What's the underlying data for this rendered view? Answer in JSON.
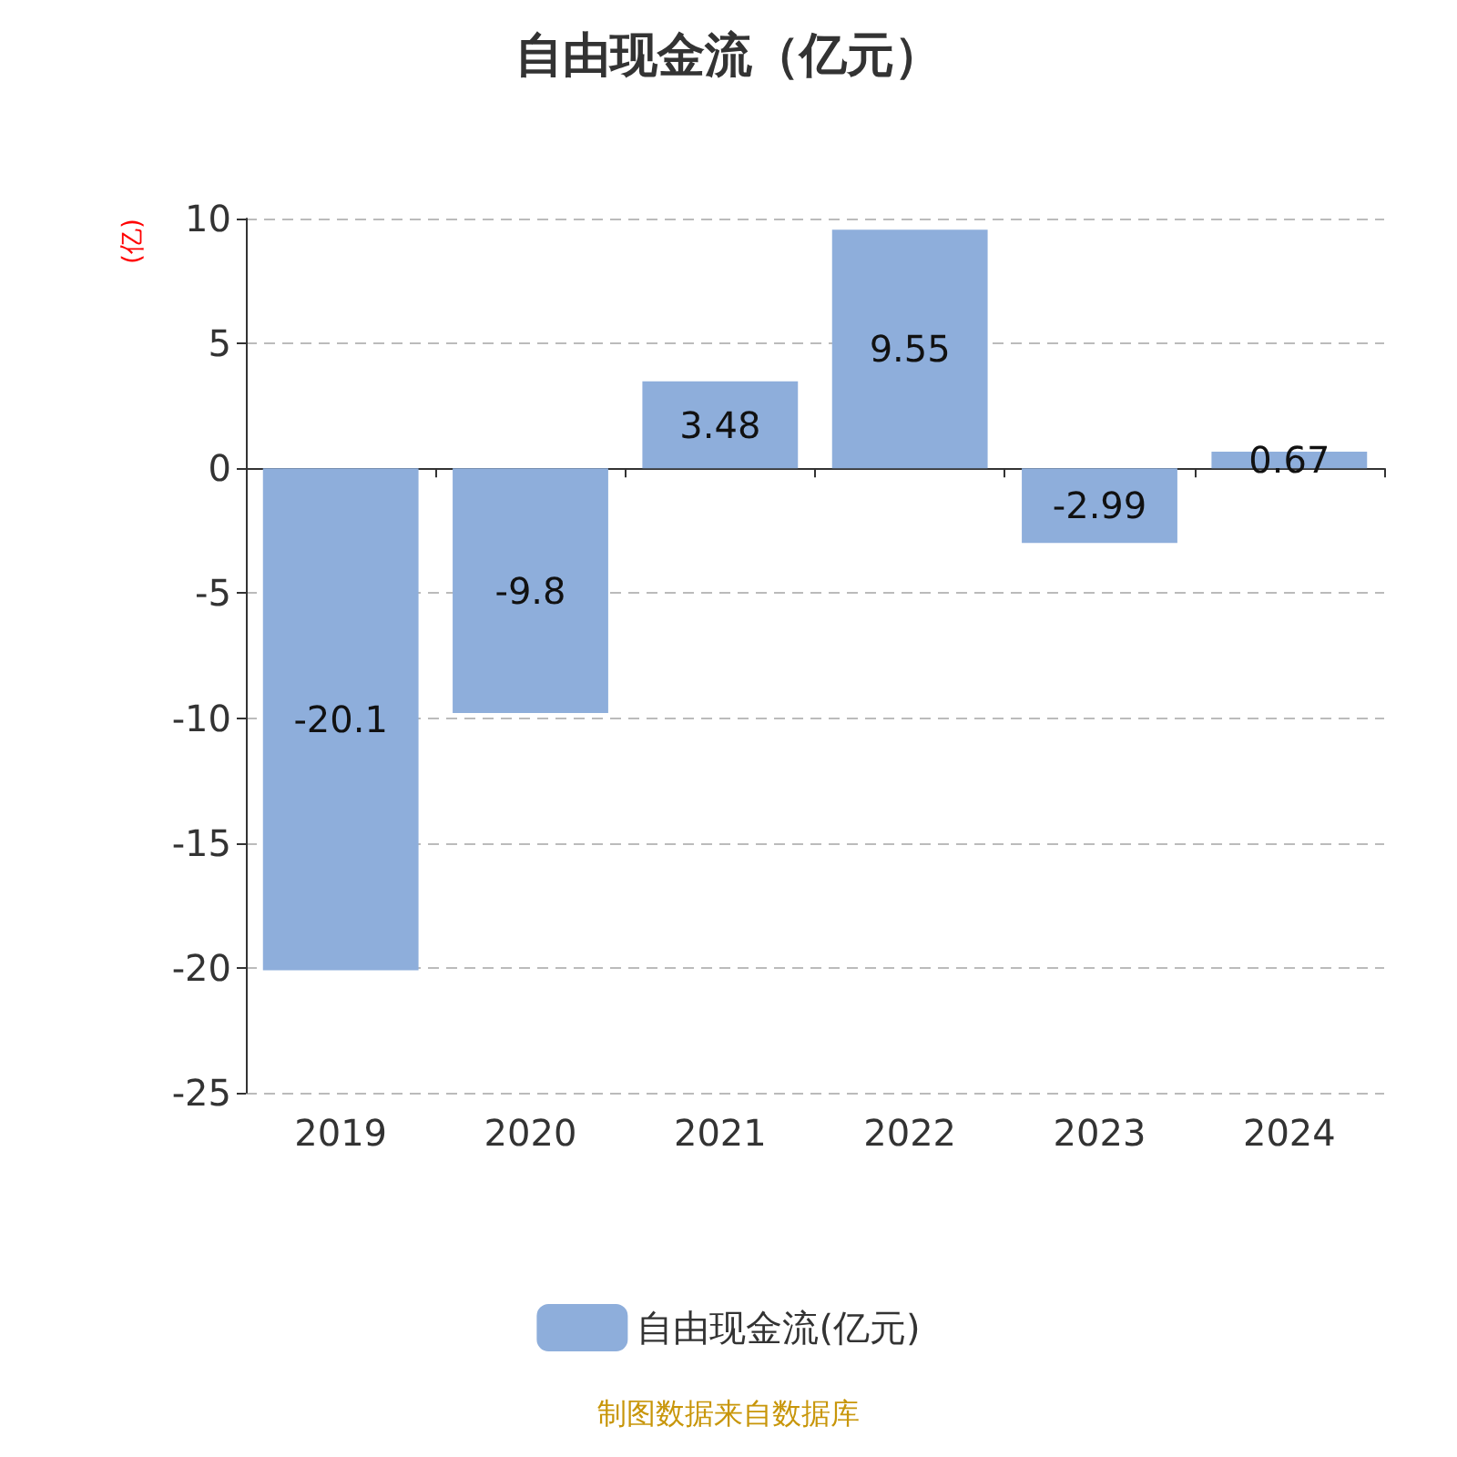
{
  "chart_data": {
    "type": "bar",
    "title": "自由现金流（亿元）",
    "ylabel": "(亿)",
    "categories": [
      "2019",
      "2020",
      "2021",
      "2022",
      "2023",
      "2024"
    ],
    "series": [
      {
        "name": "自由现金流(亿元)",
        "color": "#8eaedb",
        "values": [
          -20.1,
          -9.8,
          3.48,
          9.55,
          -2.99,
          0.67
        ]
      }
    ],
    "ylim": [
      -25,
      10
    ],
    "yticks": [
      -25,
      -20,
      -15,
      -10,
      -5,
      0,
      5,
      10
    ],
    "grid": "y",
    "legend": "bottom",
    "data_labels": true,
    "annotations": [
      "制图数据来自数据库"
    ]
  }
}
